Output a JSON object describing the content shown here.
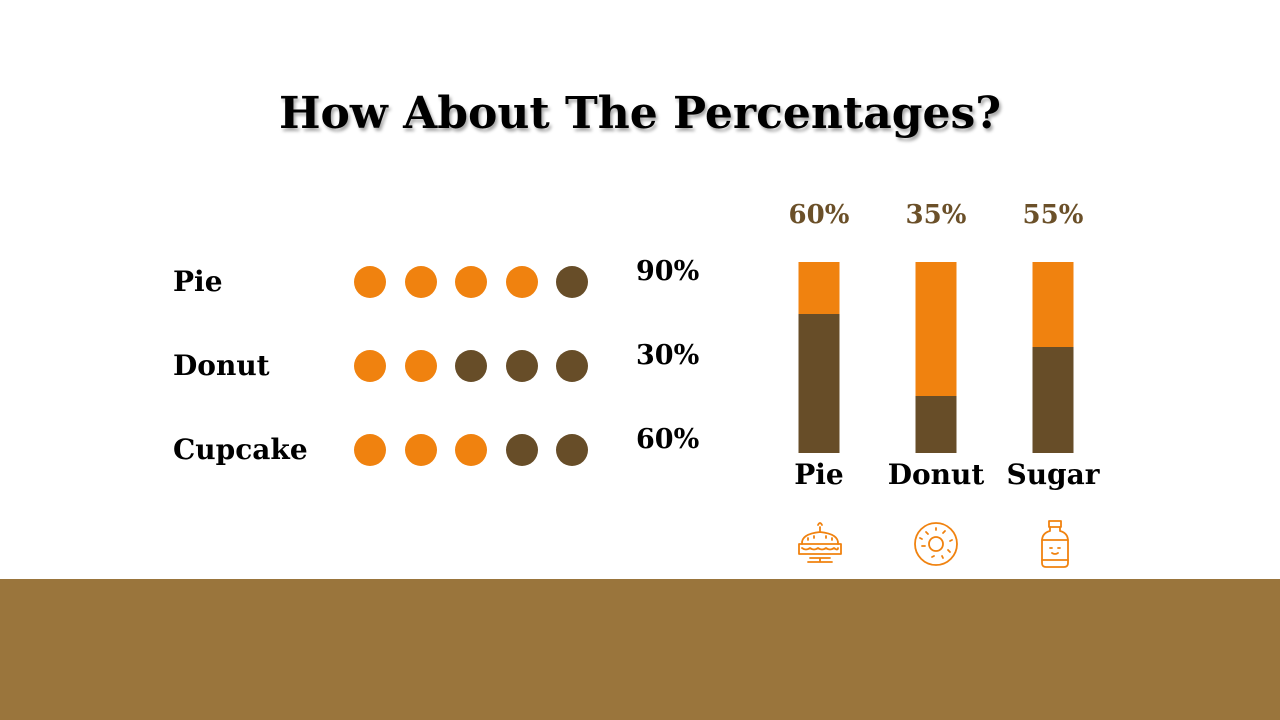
{
  "title": "How About The Percentages?",
  "colors": {
    "orange": "#f0820f",
    "brown": "#674d28",
    "pct_text": "#6b5029",
    "footer": "#9a753c"
  },
  "chart_data": [
    {
      "type": "dot-matrix",
      "dots_per_row": 5,
      "rows": [
        {
          "label": "Pie",
          "value": 90,
          "value_label": "90%",
          "filled": 4
        },
        {
          "label": "Donut",
          "value": 30,
          "value_label": "30%",
          "filled": 2
        },
        {
          "label": "Cupcake",
          "value": 60,
          "value_label": "60%",
          "filled": 3
        }
      ]
    },
    {
      "type": "bar",
      "stacked": true,
      "categories": [
        "Pie",
        "Donut",
        "Sugar"
      ],
      "values": [
        60,
        35,
        55
      ],
      "value_labels": [
        "60%",
        "35%",
        "55%"
      ],
      "icons": [
        "cake-icon",
        "donut-icon",
        "sugar-jar-icon"
      ]
    }
  ]
}
